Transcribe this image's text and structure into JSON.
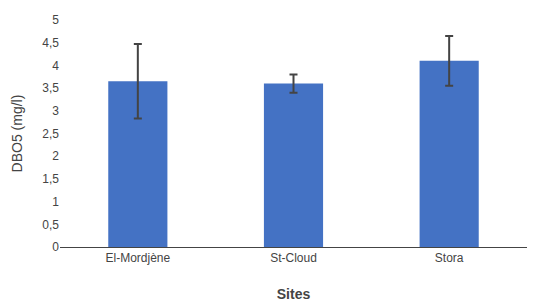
{
  "chart_data": {
    "type": "bar",
    "categories": [
      "El-Mordjène",
      "St-Cloud",
      "Stora"
    ],
    "values": [
      3.65,
      3.6,
      4.1
    ],
    "errors": [
      0.82,
      0.2,
      0.55
    ],
    "color": "#4472C4",
    "xlabel": "Sites",
    "ylabel": "DBO5 (mg/l)",
    "ylim": [
      0,
      5
    ],
    "yticks": [
      0,
      {
        "value": 0.5,
        "label": "0,5"
      },
      1,
      {
        "value": 1.5,
        "label": "1,5"
      },
      2,
      {
        "value": 2.5,
        "label": "2,5"
      },
      3,
      {
        "value": 3.5,
        "label": "3,5"
      },
      4,
      {
        "value": 4.5,
        "label": "4,5"
      },
      5
    ],
    "grid": false
  }
}
